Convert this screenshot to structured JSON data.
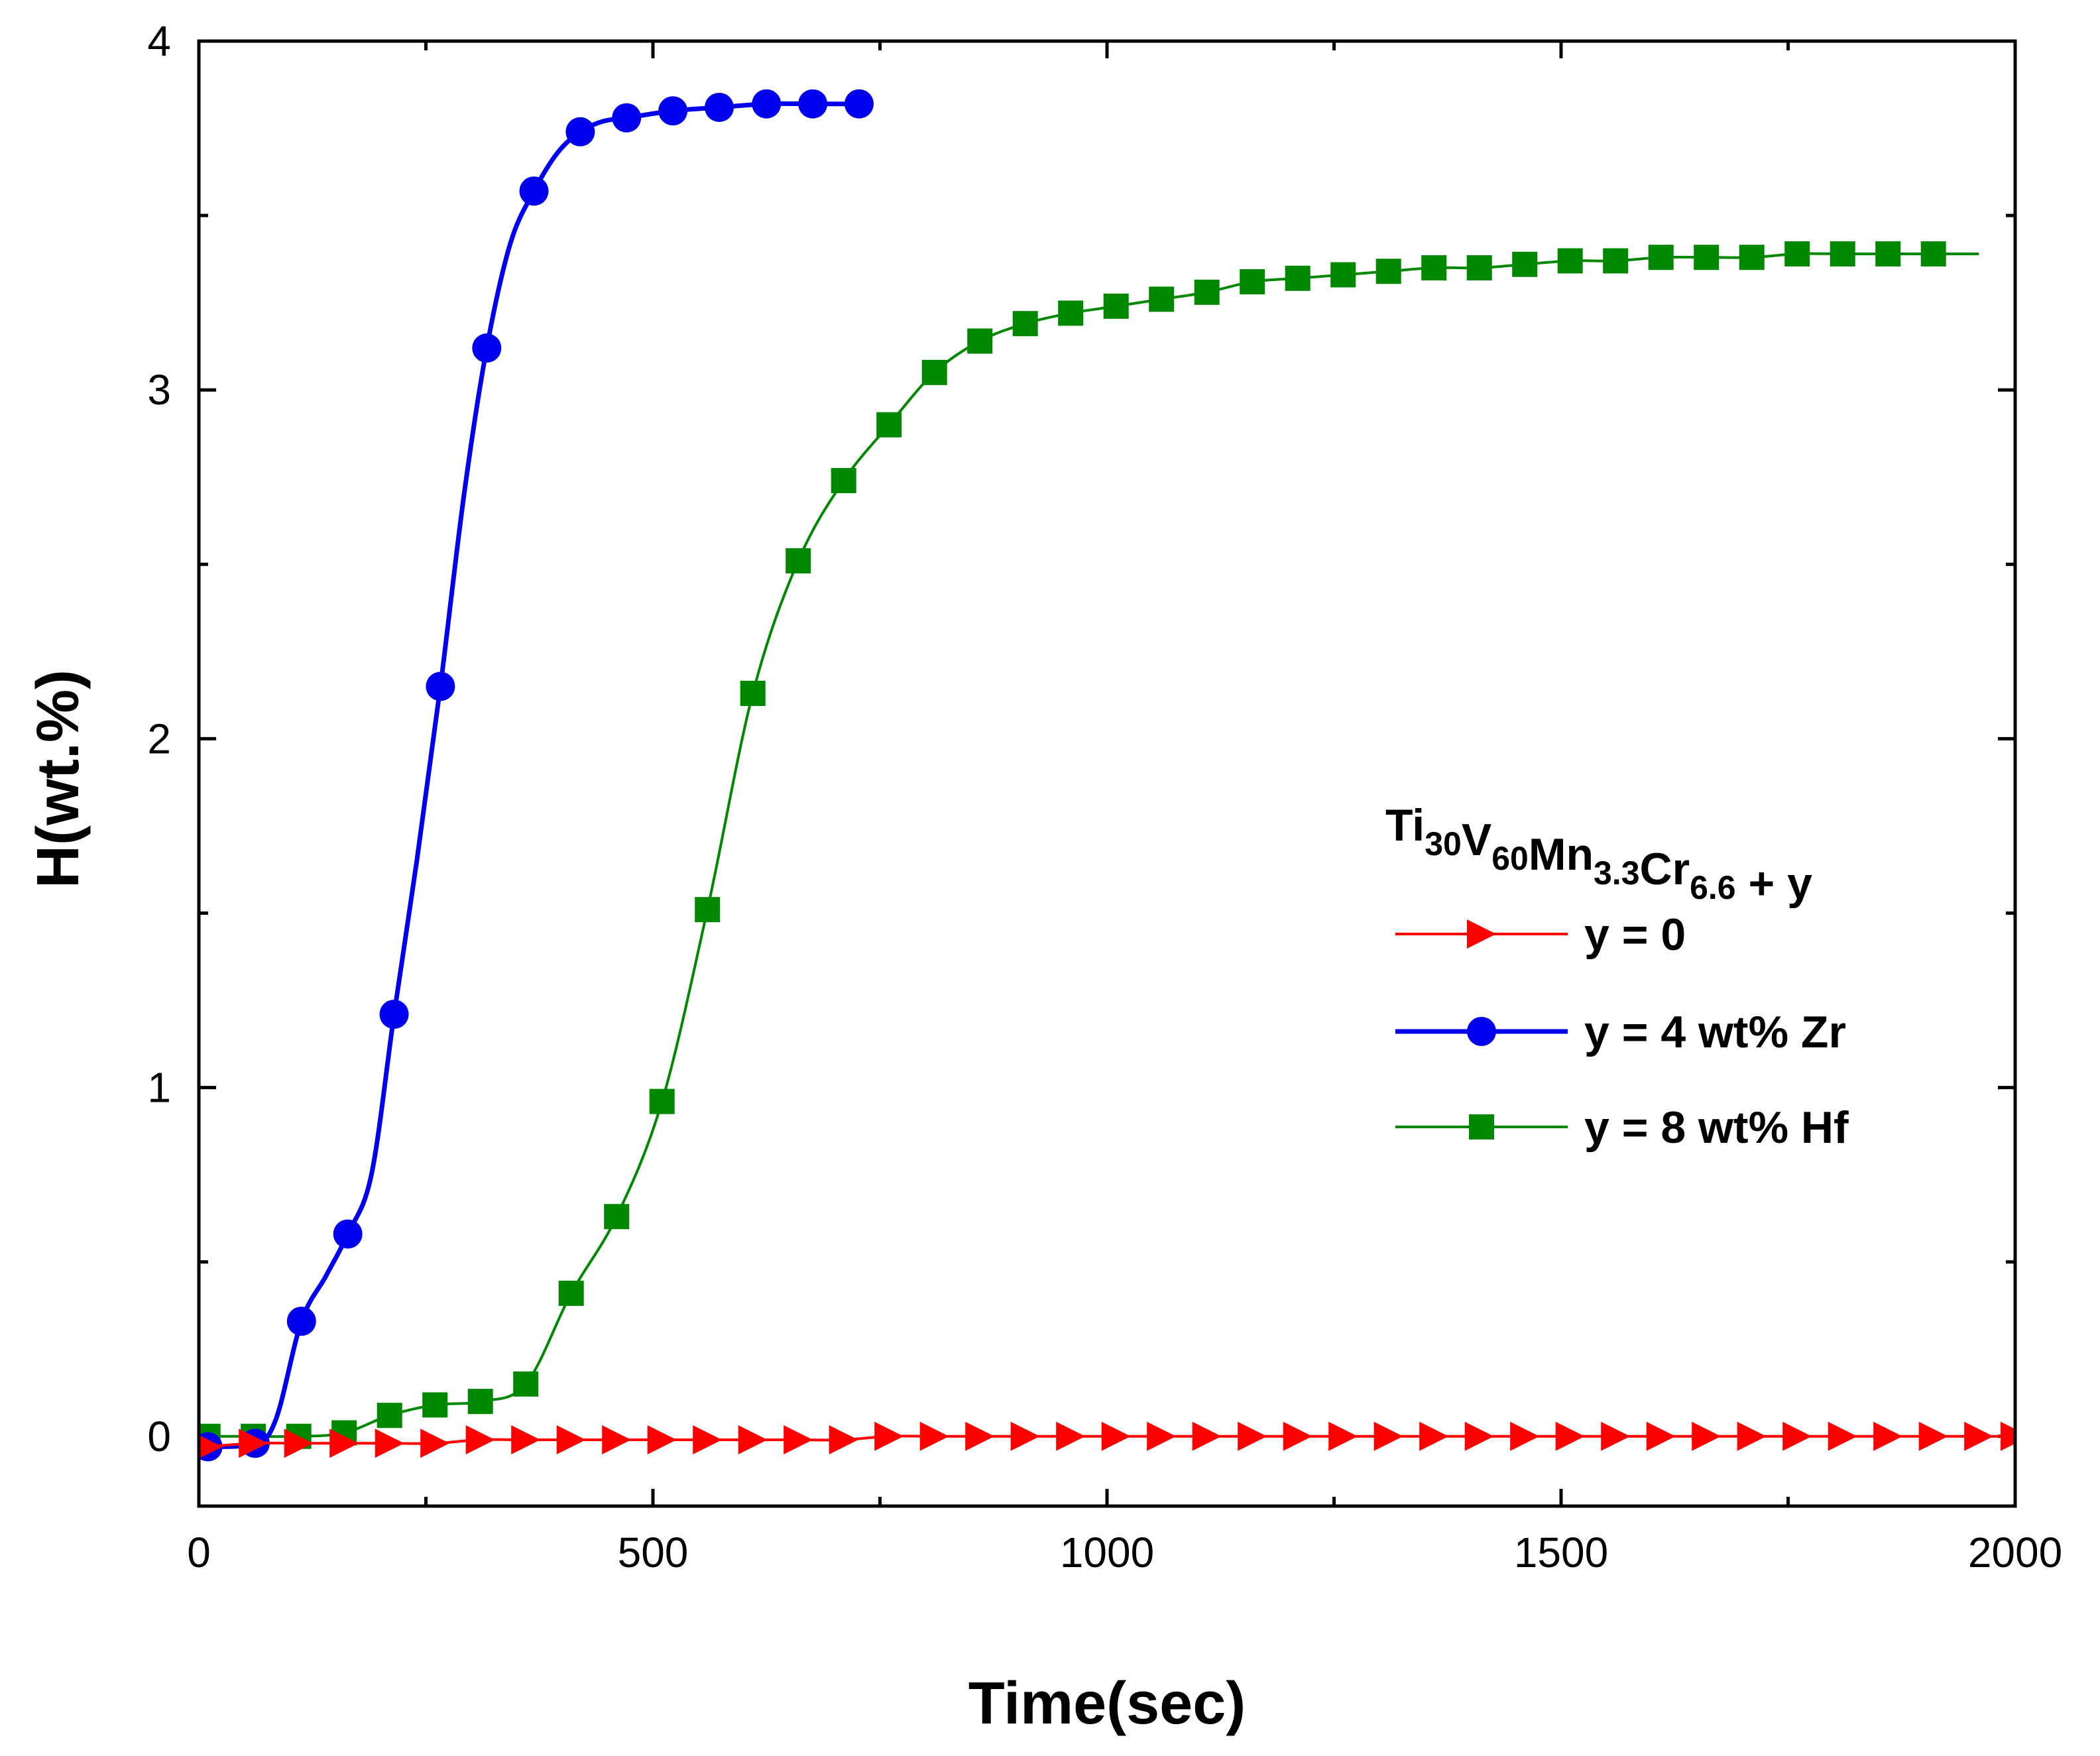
{
  "chart_data": {
    "type": "line",
    "title": "",
    "xlabel": "Time(sec)",
    "ylabel": "H(wt.%)",
    "xlim": [
      0,
      2000
    ],
    "ylim": [
      -0.2,
      4
    ],
    "x_ticks": [
      "0",
      "500",
      "1000",
      "1500",
      "2000"
    ],
    "x_tick_values": [
      0,
      500,
      1000,
      1500,
      2000
    ],
    "y_ticks": [
      "0",
      "1",
      "2",
      "3",
      "4"
    ],
    "y_tick_values": [
      0,
      1,
      2,
      3,
      4
    ],
    "grid": false,
    "legend": {
      "position": "right-middle",
      "title_parts": [
        {
          "text": "Ti",
          "sub": false
        },
        {
          "text": "30",
          "sub": true
        },
        {
          "text": "V",
          "sub": false
        },
        {
          "text": "60",
          "sub": true
        },
        {
          "text": "Mn",
          "sub": false
        },
        {
          "text": "3.3",
          "sub": true
        },
        {
          "text": "Cr",
          "sub": false
        },
        {
          "text": "6.6",
          "sub": true
        },
        {
          "text": " + y",
          "sub": false
        }
      ]
    },
    "series": [
      {
        "name": "y = 0",
        "color": "#ff0000",
        "marker": "triangle-right",
        "x": [
          10,
          60,
          110,
          160,
          210,
          260,
          310,
          360,
          410,
          460,
          510,
          560,
          610,
          660,
          710,
          760,
          810,
          860,
          910,
          960,
          1010,
          1060,
          1110,
          1160,
          1210,
          1260,
          1310,
          1360,
          1410,
          1460,
          1510,
          1560,
          1610,
          1660,
          1710,
          1760,
          1810,
          1860,
          1910,
          1960,
          2000
        ],
        "y": [
          -0.03,
          -0.02,
          -0.02,
          -0.02,
          -0.02,
          -0.02,
          -0.01,
          -0.01,
          -0.01,
          -0.01,
          -0.01,
          -0.01,
          -0.01,
          -0.01,
          -0.01,
          0,
          0,
          0,
          0,
          0,
          0,
          0,
          0,
          0,
          0,
          0,
          0,
          0,
          0,
          0,
          0,
          0,
          0,
          0,
          0,
          0,
          0,
          0,
          0,
          0,
          0
        ]
      },
      {
        "name": "y = 4 wt% Zr",
        "color": "#0000ee",
        "marker": "circle",
        "x": [
          10,
          62,
          113,
          164,
          215,
          266,
          317,
          369,
          420,
          471,
          522,
          573,
          625,
          676,
          727
        ],
        "y": [
          -0.03,
          -0.02,
          0.33,
          0.58,
          1.21,
          2.15,
          3.12,
          3.57,
          3.74,
          3.78,
          3.8,
          3.81,
          3.82,
          3.82,
          3.82
        ],
        "curve": [
          [
            10,
            -0.03
          ],
          [
            62,
            -0.02
          ],
          [
            85,
            0.05
          ],
          [
            113,
            0.33
          ],
          [
            140,
            0.46
          ],
          [
            164,
            0.58
          ],
          [
            190,
            0.75
          ],
          [
            215,
            1.21
          ],
          [
            240,
            1.65
          ],
          [
            266,
            2.15
          ],
          [
            292,
            2.7
          ],
          [
            317,
            3.12
          ],
          [
            343,
            3.42
          ],
          [
            369,
            3.57
          ],
          [
            395,
            3.68
          ],
          [
            420,
            3.74
          ],
          [
            445,
            3.77
          ],
          [
            471,
            3.78
          ],
          [
            522,
            3.8
          ],
          [
            573,
            3.81
          ],
          [
            625,
            3.82
          ],
          [
            676,
            3.82
          ],
          [
            727,
            3.82
          ]
        ]
      },
      {
        "name": "y = 8 wt% Hf",
        "color": "#008800",
        "marker": "square",
        "x": [
          10,
          60,
          110,
          160,
          210,
          260,
          310,
          360,
          410,
          460,
          510,
          560,
          610,
          660,
          710,
          760,
          810,
          860,
          910,
          960,
          1010,
          1060,
          1110,
          1160,
          1210,
          1260,
          1310,
          1360,
          1410,
          1460,
          1510,
          1560,
          1610,
          1660,
          1710,
          1760,
          1810,
          1860,
          1910
        ],
        "y": [
          0,
          0,
          0,
          0.01,
          0.06,
          0.09,
          0.1,
          0.15,
          0.41,
          0.63,
          0.96,
          1.51,
          2.13,
          2.51,
          2.74,
          2.9,
          3.05,
          3.14,
          3.19,
          3.22,
          3.24,
          3.26,
          3.28,
          3.31,
          3.32,
          3.33,
          3.34,
          3.35,
          3.35,
          3.36,
          3.37,
          3.37,
          3.38,
          3.38,
          3.38,
          3.39,
          3.39,
          3.39,
          3.39
        ],
        "line_end_x": 1960
      }
    ]
  }
}
